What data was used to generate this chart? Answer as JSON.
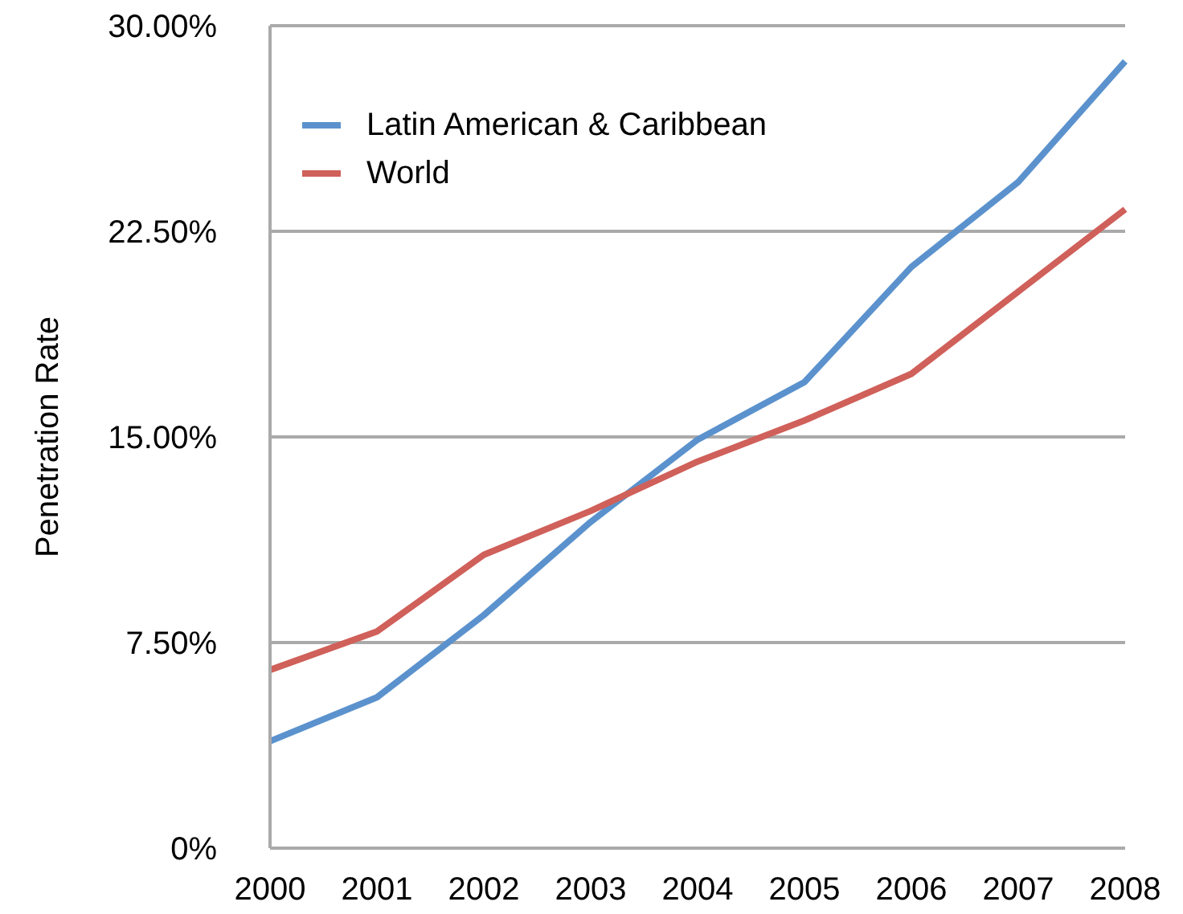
{
  "chart_data": {
    "type": "line",
    "ylabel": "Penetration Rate",
    "categories": [
      "2000",
      "2001",
      "2002",
      "2003",
      "2004",
      "2005",
      "2006",
      "2007",
      "2008"
    ],
    "series": [
      {
        "name": "Latin American & Caribbean",
        "color": "#5b92cd",
        "values": [
          3.9,
          5.5,
          8.5,
          11.9,
          14.9,
          17.0,
          21.2,
          24.3,
          28.7
        ]
      },
      {
        "name": "World",
        "color": "#d0605a",
        "values": [
          6.5,
          7.9,
          10.7,
          12.3,
          14.1,
          15.6,
          17.3,
          20.3,
          23.3
        ]
      }
    ],
    "ylim": [
      0,
      30
    ],
    "yticks": [
      {
        "value": 0,
        "label": "0%"
      },
      {
        "value": 7.5,
        "label": "7.50%"
      },
      {
        "value": 15,
        "label": "15.00%"
      },
      {
        "value": 22.5,
        "label": "22.50%"
      },
      {
        "value": 30,
        "label": "30.00%"
      }
    ],
    "grid": "y",
    "legend": "top left",
    "line_style": "solid"
  }
}
